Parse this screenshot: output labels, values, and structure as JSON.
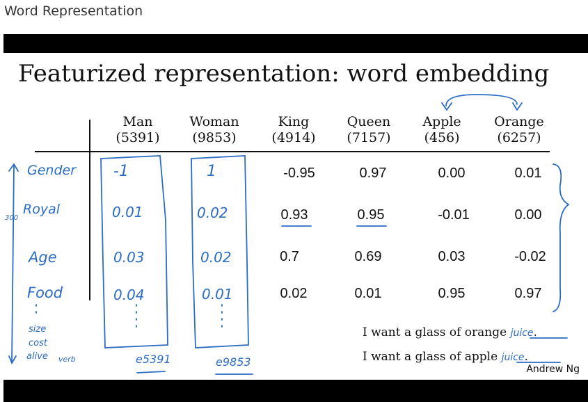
{
  "window": {
    "title": "Word Representation"
  },
  "slide": {
    "title": "Featurized representation: word embedding",
    "author": "Andrew Ng",
    "columns": [
      {
        "word": "Man",
        "index": "(5391)"
      },
      {
        "word": "Woman",
        "index": "(9853)"
      },
      {
        "word": "King",
        "index": "(4914)"
      },
      {
        "word": "Queen",
        "index": "(7157)"
      },
      {
        "word": "Apple",
        "index": "(456)"
      },
      {
        "word": "Orange",
        "index": "(6257)"
      }
    ],
    "features": [
      {
        "label": "Gender",
        "values": [
          "-1",
          "1",
          "-0.95",
          "0.97",
          "0.00",
          "0.01"
        ]
      },
      {
        "label": "Royal",
        "values": [
          "0.01",
          "0.02",
          "0.93",
          "0.95",
          "-0.01",
          "0.00"
        ]
      },
      {
        "label": "Age",
        "values": [
          "0.03",
          "0.02",
          "0.7",
          "0.69",
          "0.03",
          "-0.02"
        ]
      },
      {
        "label": "Food",
        "values": [
          "0.04",
          "0.01",
          "0.02",
          "0.01",
          "0.95",
          "0.97"
        ]
      }
    ],
    "extra_features": [
      "size",
      "cost",
      "alive",
      "verb"
    ],
    "dimension_note": "300",
    "vector_labels": [
      "e5391",
      "e9853"
    ],
    "sentences": [
      {
        "text": "I want a glass of orange",
        "blank": "juice",
        "end": "."
      },
      {
        "text": "I want a glass of apple",
        "blank": "juice",
        "end": "."
      }
    ],
    "colors": {
      "ink": "#2b6cc4",
      "text": "#111111",
      "bars": "#000000"
    }
  }
}
